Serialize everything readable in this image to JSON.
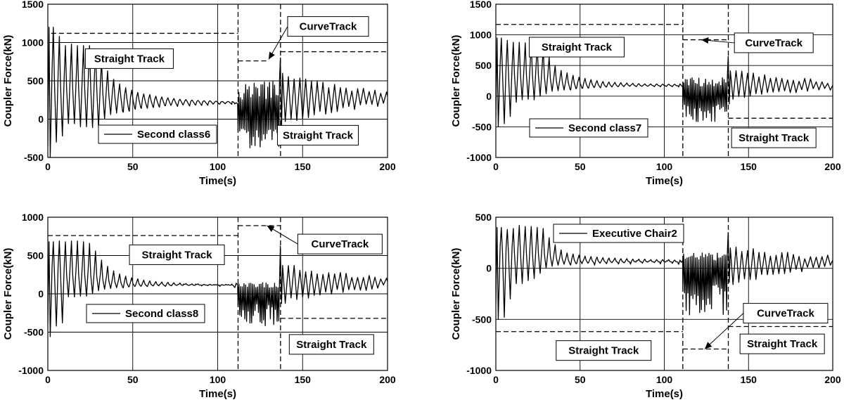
{
  "chart_data": [
    {
      "type": "line",
      "ylabel": "Coupler Force(kN)",
      "xlabel": "Time(s)",
      "xlim": [
        0,
        200
      ],
      "ylim": [
        -500,
        1500
      ],
      "xticks": [
        0,
        50,
        100,
        150,
        200
      ],
      "yticks": [
        -500,
        0,
        500,
        1000,
        1500
      ],
      "grid": true,
      "series": [
        {
          "name": "Second class6",
          "initial_peak": 1200,
          "initial_trough": -500,
          "peaks": [
            1200,
            1080,
            960,
            980,
            960,
            960,
            960,
            900,
            760,
            630,
            520,
            460,
            410,
            380,
            350,
            330,
            320,
            300,
            290,
            280,
            270,
            260,
            255,
            250,
            245,
            240,
            240,
            235,
            230,
            230,
            230
          ],
          "troughs": [
            -300,
            -220,
            -60,
            -60,
            -100,
            -100,
            -110,
            -110,
            0,
            60,
            80,
            100,
            120,
            140,
            150,
            160,
            165,
            170,
            175,
            180,
            180,
            185,
            185,
            190,
            190,
            195,
            195,
            195,
            200,
            200
          ],
          "steady_level": 220,
          "curve_min": -400,
          "curve_max": 500,
          "curve_exit_peak": 800,
          "after_peaks": 600,
          "after_troughs": -50,
          "final_level": 270
        }
      ],
      "overlay_lines": [
        {
          "type": "vertical",
          "x": 112
        },
        {
          "type": "vertical",
          "x": 137
        },
        {
          "type": "horizontal",
          "y": 1120,
          "x_start": 2,
          "x_end": 112
        },
        {
          "type": "horizontal",
          "y": 760,
          "x_start": 112,
          "x_end": 130
        },
        {
          "type": "horizontal",
          "y": 880,
          "x_start": 137,
          "x_end": 200
        }
      ],
      "annotations": [
        {
          "text": "Straight Track",
          "x": 48,
          "y": 790
        },
        {
          "text": "CurveTrack",
          "x": 165,
          "y": 1210,
          "arrow_to": [
            130,
            780
          ]
        },
        {
          "text": "Straight Track",
          "x": 159,
          "y": -210
        }
      ],
      "legend": {
        "label": "Second class6",
        "location": "bottom-left"
      }
    },
    {
      "type": "line",
      "ylabel": "Coupler Force(kN)",
      "xlabel": "Time(s)",
      "xlim": [
        0,
        200
      ],
      "ylim": [
        -1000,
        1500
      ],
      "xticks": [
        0,
        50,
        100,
        150,
        200
      ],
      "yticks": [
        -1000,
        -500,
        0,
        500,
        1000,
        1500
      ],
      "grid": true,
      "series": [
        {
          "name": "Second class7",
          "initial_peak": 950,
          "initial_trough": -500,
          "peaks": [
            950,
            910,
            880,
            880,
            870,
            870,
            850,
            780,
            640,
            500,
            420,
            380,
            340,
            310,
            290,
            270,
            255,
            240,
            230,
            225,
            220,
            215,
            210,
            205,
            200,
            200,
            200,
            195,
            195,
            195,
            190
          ],
          "troughs": [
            -450,
            -330,
            -100,
            -60,
            -50,
            -60,
            0,
            40,
            80,
            90,
            100,
            110,
            120,
            130,
            135,
            140,
            145,
            150,
            150,
            155,
            155,
            160,
            160,
            160,
            160,
            165,
            165,
            165,
            165,
            165
          ],
          "steady_level": 170,
          "curve_min": -420,
          "curve_max": 300,
          "curve_exit_peak": 650,
          "after_peaks": 420,
          "after_troughs": -50,
          "final_level": 180
        }
      ],
      "overlay_lines": [
        {
          "type": "vertical",
          "x": 111
        },
        {
          "type": "vertical",
          "x": 138
        },
        {
          "type": "horizontal",
          "y": 1170,
          "x_start": 0,
          "x_end": 111
        },
        {
          "type": "horizontal",
          "y": 920,
          "x_start": 111,
          "x_end": 138
        },
        {
          "type": "horizontal",
          "y": -360,
          "x_start": 138,
          "x_end": 200
        }
      ],
      "annotations": [
        {
          "text": "Straight Track",
          "x": 48,
          "y": 800
        },
        {
          "text": "CurveTrack",
          "x": 165,
          "y": 870,
          "arrow_to": [
            122,
            920
          ]
        },
        {
          "text": "Straight Track",
          "x": 165,
          "y": -680
        }
      ],
      "legend": {
        "label": "Second class7",
        "location": "bottom-left"
      }
    },
    {
      "type": "line",
      "ylabel": "Coupler Force(kN)",
      "xlabel": "Time(s)",
      "xlim": [
        0,
        200
      ],
      "ylim": [
        -1000,
        1000
      ],
      "xticks": [
        0,
        50,
        100,
        150,
        200
      ],
      "yticks": [
        -1000,
        -500,
        0,
        500,
        1000
      ],
      "grid": true,
      "series": [
        {
          "name": "Second class8",
          "initial_peak": 680,
          "initial_trough": -560,
          "peaks": [
            680,
            690,
            680,
            690,
            690,
            680,
            660,
            560,
            440,
            360,
            300,
            260,
            230,
            210,
            195,
            180,
            170,
            160,
            155,
            150,
            145,
            140,
            135,
            130,
            130,
            125,
            125,
            120,
            120,
            120,
            120
          ],
          "troughs": [
            -420,
            -380,
            -40,
            -40,
            -30,
            -30,
            0,
            40,
            60,
            70,
            80,
            85,
            90,
            95,
            100,
            100,
            105,
            105,
            105,
            110,
            110,
            110,
            110,
            110,
            115,
            115,
            115,
            115,
            115,
            115
          ],
          "steady_level": 110,
          "curve_min": -420,
          "curve_max": 150,
          "curve_exit_peak": 620,
          "after_peaks": 380,
          "after_troughs": -100,
          "final_level": 150
        }
      ],
      "overlay_lines": [
        {
          "type": "vertical",
          "x": 112
        },
        {
          "type": "vertical",
          "x": 137
        },
        {
          "type": "horizontal",
          "y": 760,
          "x_start": 0,
          "x_end": 112
        },
        {
          "type": "horizontal",
          "y": 890,
          "x_start": 112,
          "x_end": 137
        },
        {
          "type": "horizontal",
          "y": -320,
          "x_start": 137,
          "x_end": 200
        }
      ],
      "annotations": [
        {
          "text": "Straight Track",
          "x": 76,
          "y": 510
        },
        {
          "text": "CurveTrack",
          "x": 172,
          "y": 650,
          "arrow_to": [
            129,
            890
          ]
        },
        {
          "text": "Straight Track",
          "x": 167,
          "y": -660
        }
      ],
      "legend": {
        "label": "Second class8",
        "location": "bottom-left"
      }
    },
    {
      "type": "line",
      "ylabel": "Coupler Force(kN)",
      "xlabel": "Time(s)",
      "xlim": [
        0,
        200
      ],
      "ylim": [
        -1000,
        500
      ],
      "xticks": [
        0,
        50,
        100,
        150,
        200
      ],
      "yticks": [
        -1000,
        -500,
        0,
        500
      ],
      "grid": true,
      "series": [
        {
          "name": "Executive Chair2",
          "initial_peak": 400,
          "initial_trough": -500,
          "peaks": [
            400,
            380,
            390,
            420,
            410,
            410,
            400,
            390,
            300,
            230,
            180,
            150,
            140,
            130,
            120,
            115,
            110,
            105,
            100,
            100,
            95,
            95,
            90,
            90,
            90,
            85,
            85,
            85,
            85,
            80,
            80
          ],
          "troughs": [
            -480,
            -300,
            -150,
            -150,
            -120,
            -100,
            -50,
            0,
            20,
            30,
            40,
            40,
            45,
            45,
            50,
            50,
            50,
            55,
            55,
            55,
            55,
            60,
            60,
            60,
            60,
            60,
            60,
            60,
            60,
            60
          ],
          "steady_level": 60,
          "curve_min": -460,
          "curve_max": 150,
          "curve_exit_peak": 350,
          "after_peaks": 200,
          "after_troughs": -150,
          "final_level": 80
        }
      ],
      "overlay_lines": [
        {
          "type": "vertical",
          "x": 111
        },
        {
          "type": "vertical",
          "x": 138
        },
        {
          "type": "horizontal",
          "y": -620,
          "x_start": 0,
          "x_end": 111
        },
        {
          "type": "horizontal",
          "y": -790,
          "x_start": 111,
          "x_end": 138
        },
        {
          "type": "horizontal",
          "y": -570,
          "x_start": 138,
          "x_end": 200
        }
      ],
      "annotations": [
        {
          "text": "Straight Track",
          "x": 64,
          "y": -805
        },
        {
          "text": "CurveTrack",
          "x": 172,
          "y": -440,
          "arrow_to": [
            124,
            -790
          ]
        },
        {
          "text": "Straight Track",
          "x": 170,
          "y": -740
        }
      ],
      "legend": {
        "label": "Executive Chair2",
        "location": "top-left"
      }
    }
  ]
}
